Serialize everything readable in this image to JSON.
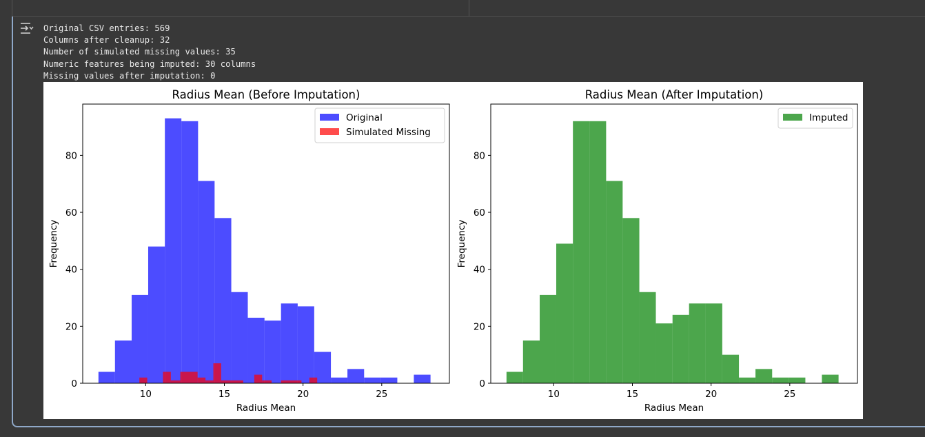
{
  "output": {
    "lines": [
      "Original CSV entries: 569",
      "Columns after cleanup: 32",
      "Number of simulated missing values: 35",
      "Numeric features being imputed: 30 columns",
      "Missing values after imputation: 0"
    ],
    "icon": "output-toggle-icon"
  },
  "chart_data": [
    {
      "type": "bar",
      "title": "Radius Mean (Before Imputation)",
      "xlabel": "Radius Mean",
      "ylabel": "Frequency",
      "xlim": [
        6.0,
        29.3
      ],
      "ylim": [
        0,
        98
      ],
      "xticks": [
        10,
        15,
        20,
        25
      ],
      "yticks": [
        0,
        20,
        40,
        60,
        80
      ],
      "legend_position": "upper right",
      "series": [
        {
          "name": "Original",
          "color": "#0000ff",
          "alpha": 0.7,
          "bins": [
            {
              "x0": 7.0,
              "x1": 8.05,
              "value": 4
            },
            {
              "x0": 8.05,
              "x1": 9.11,
              "value": 15
            },
            {
              "x0": 9.11,
              "x1": 10.16,
              "value": 31
            },
            {
              "x0": 10.16,
              "x1": 11.22,
              "value": 48
            },
            {
              "x0": 11.22,
              "x1": 12.27,
              "value": 93
            },
            {
              "x0": 12.27,
              "x1": 13.33,
              "value": 92
            },
            {
              "x0": 13.33,
              "x1": 14.38,
              "value": 71
            },
            {
              "x0": 14.38,
              "x1": 15.44,
              "value": 58
            },
            {
              "x0": 15.44,
              "x1": 16.49,
              "value": 32
            },
            {
              "x0": 16.49,
              "x1": 17.55,
              "value": 23
            },
            {
              "x0": 17.55,
              "x1": 18.6,
              "value": 22
            },
            {
              "x0": 18.6,
              "x1": 19.66,
              "value": 28
            },
            {
              "x0": 19.66,
              "x1": 20.71,
              "value": 27
            },
            {
              "x0": 20.71,
              "x1": 21.77,
              "value": 11
            },
            {
              "x0": 21.77,
              "x1": 22.82,
              "value": 2
            },
            {
              "x0": 22.82,
              "x1": 23.88,
              "value": 5
            },
            {
              "x0": 23.88,
              "x1": 24.93,
              "value": 2
            },
            {
              "x0": 24.93,
              "x1": 25.99,
              "value": 2
            },
            {
              "x0": 25.99,
              "x1": 27.04,
              "value": 0
            },
            {
              "x0": 27.04,
              "x1": 28.1,
              "value": 3
            }
          ]
        },
        {
          "name": "Simulated Missing",
          "color": "#ff0000",
          "alpha": 0.7,
          "bins": [
            {
              "x0": 9.6,
              "x1": 10.1,
              "value": 2
            },
            {
              "x0": 11.1,
              "x1": 11.6,
              "value": 4
            },
            {
              "x0": 11.6,
              "x1": 12.2,
              "value": 1
            },
            {
              "x0": 12.2,
              "x1": 13.3,
              "value": 4
            },
            {
              "x0": 13.3,
              "x1": 13.8,
              "value": 2
            },
            {
              "x0": 13.8,
              "x1": 14.3,
              "value": 1
            },
            {
              "x0": 14.3,
              "x1": 14.8,
              "value": 7
            },
            {
              "x0": 14.8,
              "x1": 16.2,
              "value": 1
            },
            {
              "x0": 16.9,
              "x1": 17.4,
              "value": 3
            },
            {
              "x0": 17.4,
              "x1": 18.0,
              "value": 1
            },
            {
              "x0": 18.6,
              "x1": 19.9,
              "value": 1
            },
            {
              "x0": 20.4,
              "x1": 20.9,
              "value": 2
            }
          ]
        }
      ]
    },
    {
      "type": "bar",
      "title": "Radius Mean (After Imputation)",
      "xlabel": "Radius Mean",
      "ylabel": "Frequency",
      "xlim": [
        6.0,
        29.3
      ],
      "ylim": [
        0,
        98
      ],
      "xticks": [
        10,
        15,
        20,
        25
      ],
      "yticks": [
        0,
        20,
        40,
        60,
        80
      ],
      "legend_position": "upper right",
      "series": [
        {
          "name": "Imputed",
          "color": "#008000",
          "alpha": 0.7,
          "bins": [
            {
              "x0": 7.0,
              "x1": 8.05,
              "value": 4
            },
            {
              "x0": 8.05,
              "x1": 9.11,
              "value": 15
            },
            {
              "x0": 9.11,
              "x1": 10.16,
              "value": 31
            },
            {
              "x0": 10.16,
              "x1": 11.22,
              "value": 49
            },
            {
              "x0": 11.22,
              "x1": 12.27,
              "value": 92
            },
            {
              "x0": 12.27,
              "x1": 13.33,
              "value": 92
            },
            {
              "x0": 13.33,
              "x1": 14.38,
              "value": 71
            },
            {
              "x0": 14.38,
              "x1": 15.44,
              "value": 58
            },
            {
              "x0": 15.44,
              "x1": 16.49,
              "value": 32
            },
            {
              "x0": 16.49,
              "x1": 17.55,
              "value": 21
            },
            {
              "x0": 17.55,
              "x1": 18.6,
              "value": 24
            },
            {
              "x0": 18.6,
              "x1": 19.66,
              "value": 28
            },
            {
              "x0": 19.66,
              "x1": 20.71,
              "value": 28
            },
            {
              "x0": 20.71,
              "x1": 21.77,
              "value": 10
            },
            {
              "x0": 21.77,
              "x1": 22.82,
              "value": 2
            },
            {
              "x0": 22.82,
              "x1": 23.88,
              "value": 5
            },
            {
              "x0": 23.88,
              "x1": 24.93,
              "value": 2
            },
            {
              "x0": 24.93,
              "x1": 25.99,
              "value": 2
            },
            {
              "x0": 25.99,
              "x1": 27.04,
              "value": 0
            },
            {
              "x0": 27.04,
              "x1": 28.1,
              "value": 3
            }
          ]
        }
      ]
    }
  ]
}
